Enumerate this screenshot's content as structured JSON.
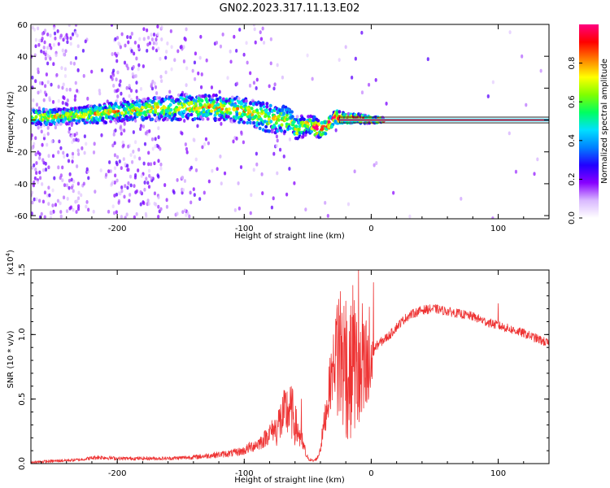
{
  "title": "GN02.2023.317.11.13.E02",
  "chart_data": [
    {
      "type": "heatmap",
      "xlabel": "Height of straight line (km)",
      "ylabel": "Frequency (Hz)",
      "xlim": [
        -268,
        140
      ],
      "ylim": [
        -62,
        60
      ],
      "x_ticks": [
        -200,
        -100,
        0,
        100
      ],
      "y_ticks": [
        -60,
        -40,
        -20,
        0,
        20,
        40,
        60
      ],
      "x_tick_labels": [
        "-200",
        "-100",
        "0",
        "100"
      ],
      "y_tick_labels": [
        "-60",
        "-40",
        "-20",
        "0",
        "20",
        "40",
        "60"
      ],
      "colorbar": {
        "label": "Normalized spectral amplitude",
        "range": [
          0.0,
          1.0
        ],
        "ticks": [
          "0.0",
          "0.2",
          "0.4",
          "0.6",
          "0.8"
        ],
        "colormap": [
          "#ffffff",
          "#d9b8ff",
          "#8800ff",
          "#2200ff",
          "#0080ff",
          "#00e0ff",
          "#00ff60",
          "#80ff00",
          "#ffff00",
          "#ff8000",
          "#ff0000",
          "#ff0080"
        ]
      },
      "ridge": {
        "x": [
          -265,
          -250,
          -230,
          -210,
          -190,
          -170,
          -150,
          -130,
          -110,
          -95,
          -85,
          -75,
          -65,
          -58,
          -50,
          -45,
          -40,
          -35,
          -28,
          -20,
          -10,
          0,
          20,
          60,
          100,
          140
        ],
        "y": [
          2,
          2,
          3,
          4,
          6,
          7,
          8,
          8,
          7,
          5,
          2,
          1,
          0,
          -6,
          -2,
          -4,
          -6,
          -4,
          2,
          1,
          1,
          0,
          0,
          0,
          0,
          0
        ],
        "width": [
          5,
          5,
          5,
          6,
          6,
          7,
          8,
          8,
          8,
          8,
          9,
          9,
          8,
          8,
          6,
          6,
          5,
          4,
          4,
          3,
          3,
          2,
          1,
          1,
          1,
          1
        ]
      }
    },
    {
      "type": "line",
      "xlabel": "Height of straight line (km)",
      "ylabel": "SNR (10 * v/v)",
      "y_multiplier": "(x10",
      "y_exponent": "4",
      "y_multiplier_close": ")",
      "xlim": [
        -268,
        140
      ],
      "ylim": [
        0,
        15000
      ],
      "x_ticks": [
        -200,
        -100,
        0,
        100
      ],
      "y_ticks": [
        0,
        5000,
        10000,
        15000
      ],
      "x_tick_labels": [
        "-200",
        "-100",
        "0",
        "100"
      ],
      "y_tick_labels": [
        "0.0",
        "0.5",
        "1.0",
        "1.5"
      ],
      "color": "#ee3333",
      "envelope": {
        "x": [
          -268,
          -250,
          -230,
          -215,
          -200,
          -180,
          -160,
          -140,
          -120,
          -110,
          -100,
          -95,
          -90,
          -85,
          -80,
          -75,
          -72,
          -68,
          -65,
          -62,
          -60,
          -57,
          -55,
          -52,
          -50,
          -48,
          -46,
          -44,
          -42,
          -40,
          -38,
          -36,
          -34,
          -32,
          -30,
          -28,
          -26,
          -24,
          -22,
          -20,
          -18,
          -16,
          -14,
          -12,
          -10,
          -8,
          -6,
          -4,
          -2,
          0,
          3,
          6,
          10,
          15,
          20,
          25,
          30,
          40,
          50,
          60,
          70,
          80,
          90,
          100,
          110,
          120,
          130,
          140
        ],
        "y": [
          100,
          200,
          300,
          500,
          400,
          400,
          400,
          500,
          700,
          800,
          1000,
          1300,
          1500,
          1800,
          2400,
          2800,
          3200,
          3800,
          4200,
          3800,
          3000,
          2400,
          1800,
          900,
          400,
          300,
          200,
          300,
          500,
          1200,
          2500,
          3800,
          5000,
          6500,
          7500,
          8500,
          9000,
          8500,
          8000,
          7500,
          6500,
          7000,
          8500,
          7000,
          6500,
          6000,
          6500,
          6800,
          7000,
          8000,
          9000,
          9300,
          9600,
          10000,
          10600,
          11100,
          11500,
          11900,
          12000,
          11800,
          11600,
          11400,
          11000,
          10700,
          10400,
          10100,
          9700,
          9300
        ]
      },
      "spikes": [
        {
          "x": -62,
          "y": 5800
        },
        {
          "x": -55,
          "y": 5000
        },
        {
          "x": -20,
          "y": 12600
        },
        {
          "x": -14,
          "y": 11500
        },
        {
          "x": -10,
          "y": 15000
        },
        {
          "x": -7,
          "y": 12400
        },
        {
          "x": 100,
          "y": 12400
        }
      ]
    }
  ]
}
